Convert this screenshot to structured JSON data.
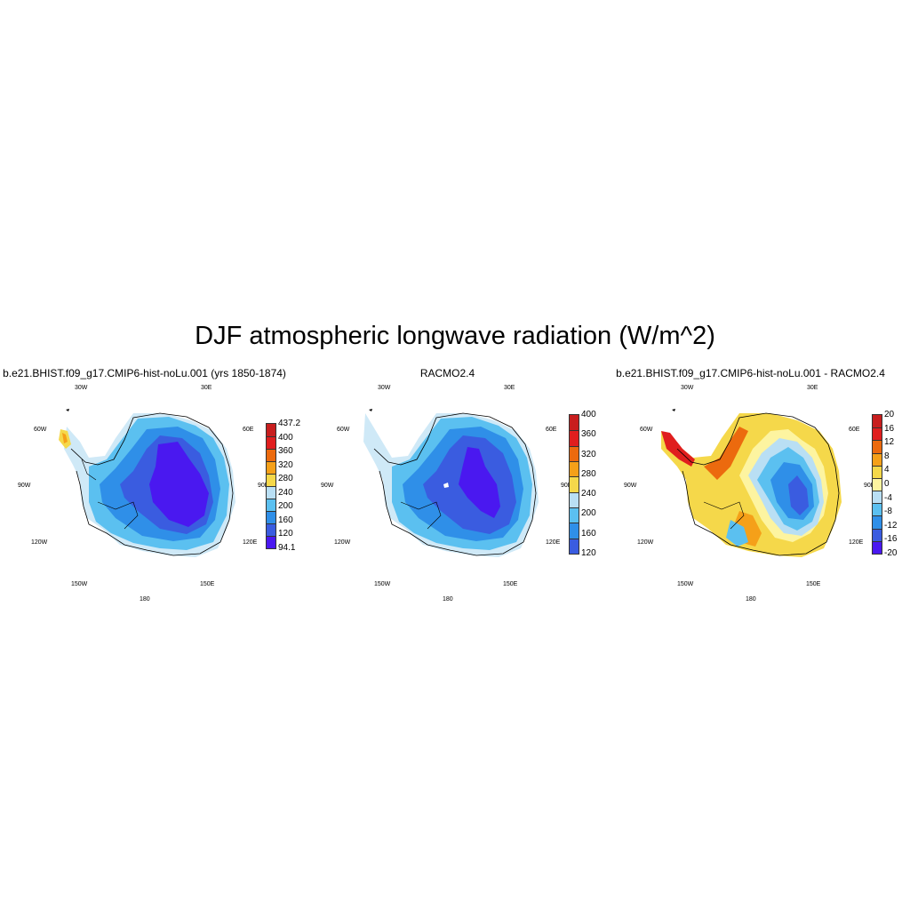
{
  "title": "DJF atmospheric longwave radiation (W/m^2)",
  "colors": {
    "abs_scale": [
      "#4a18f0",
      "#3a5ce0",
      "#2f8fe8",
      "#5bc0f0",
      "#b9dff4",
      "#f5d84a",
      "#f5a019",
      "#ec6a0e",
      "#e01e1e",
      "#c81e1e"
    ],
    "diff_scale": [
      "#4a18f0",
      "#3a5ce0",
      "#2f8fe8",
      "#5bc0f0",
      "#b9dff4",
      "#fdf4a0",
      "#f5d84a",
      "#f5a019",
      "#ec6a0e",
      "#e01e1e",
      "#c81e1e"
    ]
  },
  "panels": [
    {
      "title": "b.e21.BHIST.f09_g17.CMIP6-hist-noLu.001 (yrs 1850-1874)",
      "lon_labels": {
        "n30w": "30W",
        "n30e": "30E",
        "w60": "60W",
        "e60": "60E",
        "w90": "90W",
        "e90": "90E",
        "w120": "120W",
        "e120": "120E",
        "s150w": "150W",
        "s150e": "150E",
        "s180": "180"
      },
      "colorbar_labels": [
        "437.2",
        "400",
        "360",
        "320",
        "280",
        "240",
        "200",
        "160",
        "120",
        "94.1"
      ]
    },
    {
      "title": "RACMO2.4",
      "lon_labels": {
        "n30w": "30W",
        "n30e": "30E",
        "w60": "60W",
        "e60": "60E",
        "w90": "90W",
        "e90": "90E",
        "w120": "120W",
        "e120": "120E",
        "s150w": "150W",
        "s150e": "150E",
        "s180": "180"
      },
      "colorbar_labels": [
        "400",
        "360",
        "320",
        "280",
        "240",
        "200",
        "160",
        "120"
      ]
    },
    {
      "title": "b.e21.BHIST.f09_g17.CMIP6-hist-noLu.001 - RACMO2.4",
      "lon_labels": {
        "n30w": "30W",
        "n30e": "30E",
        "w60": "60W",
        "e60": "60E",
        "w90": "90W",
        "e90": "90E",
        "w120": "120W",
        "e120": "120E",
        "s150w": "150W",
        "s150e": "150E",
        "s180": "180"
      },
      "colorbar_labels": [
        "20",
        "16",
        "12",
        "8",
        "4",
        "0",
        "-4",
        "-8",
        "-12",
        "-16",
        "-20"
      ]
    }
  ]
}
